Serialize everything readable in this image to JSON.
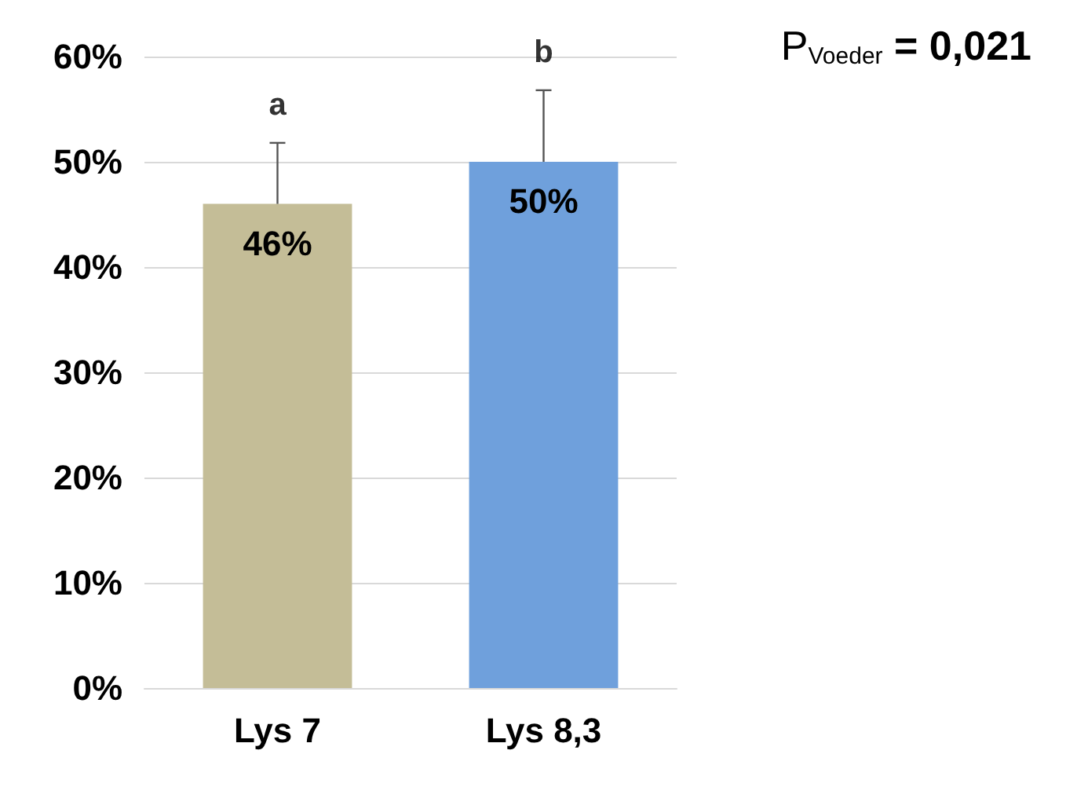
{
  "chart_data": {
    "type": "bar",
    "categories": [
      "Lys 7",
      "Lys 8,3"
    ],
    "values": [
      46,
      50
    ],
    "colors": [
      "#c4bd97",
      "#6fa0dc"
    ],
    "errors": [
      [
        46,
        51.8
      ],
      [
        50,
        56.8
      ]
    ],
    "value_labels": [
      "46%",
      "50%"
    ],
    "ylim": [
      0,
      60
    ],
    "yticks": [
      {
        "value": 0,
        "label": "0%"
      },
      {
        "value": 10,
        "label": "10%"
      },
      {
        "value": 20,
        "label": "20%"
      },
      {
        "value": 30,
        "label": "30%"
      },
      {
        "value": 40,
        "label": "40%"
      },
      {
        "value": 50,
        "label": "50%"
      },
      {
        "value": 60,
        "label": "60%"
      }
    ],
    "grid": "y",
    "annotations": [
      {
        "text": "a",
        "x": "Lys 7",
        "y": 51.8
      },
      {
        "text": "b",
        "x": "Lys 8,3",
        "y": 56.8
      },
      "P$_{Voeder}$ = 0,021"
    ]
  }
}
